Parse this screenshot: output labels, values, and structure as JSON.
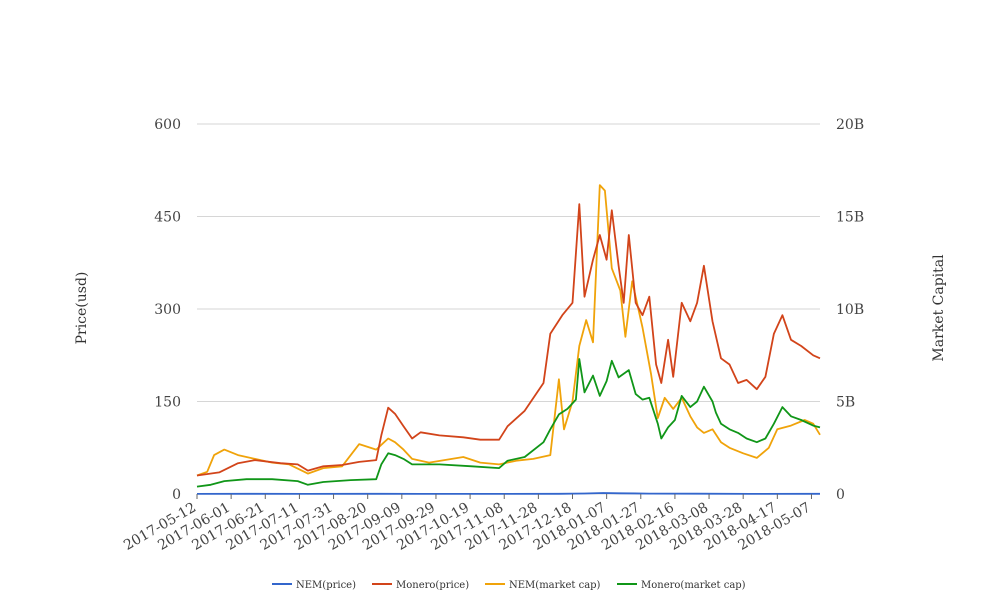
{
  "chart_data": {
    "type": "line",
    "title": "",
    "ylabel_left": "Price(usd)",
    "ylabel_right": "Market Capital",
    "x_start": "2017-05-12",
    "x_end": "2018-05-12",
    "x_ticks": [
      "2017-05-12",
      "2017-06-01",
      "2017-06-21",
      "2017-07-11",
      "2017-07-31",
      "2017-08-20",
      "2017-09-09",
      "2017-09-29",
      "2017-10-19",
      "2017-11-08",
      "2017-11-28",
      "2017-12-18",
      "2018-01-07",
      "2018-01-27",
      "2018-02-16",
      "2018-03-08",
      "2018-03-28",
      "2018-04-17",
      "2018-05-07"
    ],
    "y_left": {
      "range": [
        0,
        600
      ],
      "ticks": [
        "0",
        "150",
        "300",
        "450",
        "600"
      ]
    },
    "y_right": {
      "range": [
        0,
        20000000000
      ],
      "ticks": [
        "0",
        "5B",
        "10B",
        "15B",
        "20B"
      ]
    },
    "legend_position": "bottom",
    "grid": true,
    "series": [
      {
        "name": "NEM(price)",
        "axis": "left",
        "color": "#3366cc",
        "points": [
          [
            "2017-05-12",
            0.2
          ],
          [
            "2017-06-10",
            0.25
          ],
          [
            "2017-07-15",
            0.15
          ],
          [
            "2017-08-20",
            0.28
          ],
          [
            "2017-09-20",
            0.2
          ],
          [
            "2017-11-01",
            0.18
          ],
          [
            "2017-12-10",
            0.25
          ],
          [
            "2017-12-25",
            0.8
          ],
          [
            "2018-01-05",
            1.6
          ],
          [
            "2018-01-15",
            1.1
          ],
          [
            "2018-02-01",
            0.6
          ],
          [
            "2018-03-01",
            0.45
          ],
          [
            "2018-04-01",
            0.22
          ],
          [
            "2018-05-12",
            0.35
          ]
        ]
      },
      {
        "name": "Monero(price)",
        "axis": "left",
        "color": "#d2441a",
        "points": [
          [
            "2017-05-12",
            30
          ],
          [
            "2017-05-25",
            35
          ],
          [
            "2017-06-05",
            50
          ],
          [
            "2017-06-15",
            55
          ],
          [
            "2017-06-30",
            50
          ],
          [
            "2017-07-10",
            48
          ],
          [
            "2017-07-16",
            38
          ],
          [
            "2017-07-25",
            45
          ],
          [
            "2017-08-05",
            47
          ],
          [
            "2017-08-15",
            52
          ],
          [
            "2017-08-25",
            55
          ],
          [
            "2017-08-28",
            95
          ],
          [
            "2017-09-01",
            140
          ],
          [
            "2017-09-05",
            130
          ],
          [
            "2017-09-10",
            110
          ],
          [
            "2017-09-15",
            90
          ],
          [
            "2017-09-20",
            100
          ],
          [
            "2017-10-01",
            95
          ],
          [
            "2017-10-15",
            92
          ],
          [
            "2017-10-25",
            88
          ],
          [
            "2017-11-05",
            88
          ],
          [
            "2017-11-10",
            110
          ],
          [
            "2017-11-20",
            135
          ],
          [
            "2017-12-01",
            180
          ],
          [
            "2017-12-05",
            260
          ],
          [
            "2017-12-12",
            290
          ],
          [
            "2017-12-18",
            310
          ],
          [
            "2017-12-22",
            470
          ],
          [
            "2017-12-25",
            320
          ],
          [
            "2017-12-30",
            380
          ],
          [
            "2018-01-03",
            420
          ],
          [
            "2018-01-07",
            380
          ],
          [
            "2018-01-10",
            460
          ],
          [
            "2018-01-14",
            370
          ],
          [
            "2018-01-17",
            310
          ],
          [
            "2018-01-20",
            420
          ],
          [
            "2018-01-24",
            310
          ],
          [
            "2018-01-28",
            290
          ],
          [
            "2018-02-01",
            320
          ],
          [
            "2018-02-05",
            210
          ],
          [
            "2018-02-08",
            180
          ],
          [
            "2018-02-12",
            250
          ],
          [
            "2018-02-15",
            190
          ],
          [
            "2018-02-20",
            310
          ],
          [
            "2018-02-25",
            280
          ],
          [
            "2018-03-01",
            310
          ],
          [
            "2018-03-05",
            370
          ],
          [
            "2018-03-10",
            280
          ],
          [
            "2018-03-15",
            220
          ],
          [
            "2018-03-20",
            210
          ],
          [
            "2018-03-25",
            180
          ],
          [
            "2018-03-30",
            185
          ],
          [
            "2018-04-05",
            170
          ],
          [
            "2018-04-10",
            190
          ],
          [
            "2018-04-15",
            260
          ],
          [
            "2018-04-20",
            290
          ],
          [
            "2018-04-25",
            250
          ],
          [
            "2018-05-01",
            240
          ],
          [
            "2018-05-08",
            225
          ],
          [
            "2018-05-12",
            220
          ]
        ]
      },
      {
        "name": "NEM(market cap)",
        "axis": "right",
        "color": "#f0a30a",
        "points": [
          [
            "2017-05-12",
            1000000000
          ],
          [
            "2017-05-18",
            1200000000
          ],
          [
            "2017-05-22",
            2100000000
          ],
          [
            "2017-05-28",
            2400000000
          ],
          [
            "2017-06-05",
            2100000000
          ],
          [
            "2017-06-15",
            1900000000
          ],
          [
            "2017-06-25",
            1700000000
          ],
          [
            "2017-07-05",
            1600000000
          ],
          [
            "2017-07-16",
            1100000000
          ],
          [
            "2017-07-25",
            1400000000
          ],
          [
            "2017-08-05",
            1500000000
          ],
          [
            "2017-08-15",
            2700000000
          ],
          [
            "2017-08-25",
            2400000000
          ],
          [
            "2017-09-01",
            3000000000
          ],
          [
            "2017-09-05",
            2800000000
          ],
          [
            "2017-09-10",
            2400000000
          ],
          [
            "2017-09-15",
            1900000000
          ],
          [
            "2017-09-25",
            1700000000
          ],
          [
            "2017-10-15",
            2000000000
          ],
          [
            "2017-10-25",
            1700000000
          ],
          [
            "2017-11-05",
            1600000000
          ],
          [
            "2017-11-15",
            1800000000
          ],
          [
            "2017-11-25",
            1900000000
          ],
          [
            "2017-12-05",
            2100000000
          ],
          [
            "2017-12-10",
            6200000000
          ],
          [
            "2017-12-13",
            3500000000
          ],
          [
            "2017-12-18",
            5000000000
          ],
          [
            "2017-12-22",
            8000000000
          ],
          [
            "2017-12-26",
            9400000000
          ],
          [
            "2017-12-30",
            8200000000
          ],
          [
            "2018-01-03",
            16700000000
          ],
          [
            "2018-01-06",
            16400000000
          ],
          [
            "2018-01-10",
            12200000000
          ],
          [
            "2018-01-15",
            11000000000
          ],
          [
            "2018-01-18",
            8500000000
          ],
          [
            "2018-01-22",
            11500000000
          ],
          [
            "2018-01-28",
            9000000000
          ],
          [
            "2018-02-02",
            6500000000
          ],
          [
            "2018-02-06",
            4100000000
          ],
          [
            "2018-02-10",
            5200000000
          ],
          [
            "2018-02-15",
            4600000000
          ],
          [
            "2018-02-20",
            5200000000
          ],
          [
            "2018-02-25",
            4200000000
          ],
          [
            "2018-03-01",
            3600000000
          ],
          [
            "2018-03-05",
            3300000000
          ],
          [
            "2018-03-10",
            3500000000
          ],
          [
            "2018-03-15",
            2800000000
          ],
          [
            "2018-03-20",
            2500000000
          ],
          [
            "2018-03-28",
            2200000000
          ],
          [
            "2018-04-05",
            1950000000
          ],
          [
            "2018-04-12",
            2500000000
          ],
          [
            "2018-04-17",
            3500000000
          ],
          [
            "2018-04-25",
            3700000000
          ],
          [
            "2018-05-03",
            4000000000
          ],
          [
            "2018-05-08",
            3800000000
          ],
          [
            "2018-05-12",
            3200000000
          ]
        ]
      },
      {
        "name": "Monero(market cap)",
        "axis": "right",
        "color": "#109618",
        "points": [
          [
            "2017-05-12",
            400000000
          ],
          [
            "2017-05-20",
            500000000
          ],
          [
            "2017-05-28",
            700000000
          ],
          [
            "2017-06-10",
            800000000
          ],
          [
            "2017-06-25",
            800000000
          ],
          [
            "2017-07-10",
            700000000
          ],
          [
            "2017-07-16",
            500000000
          ],
          [
            "2017-07-25",
            650000000
          ],
          [
            "2017-08-10",
            750000000
          ],
          [
            "2017-08-25",
            800000000
          ],
          [
            "2017-08-28",
            1600000000
          ],
          [
            "2017-09-01",
            2200000000
          ],
          [
            "2017-09-05",
            2100000000
          ],
          [
            "2017-09-10",
            1900000000
          ],
          [
            "2017-09-15",
            1600000000
          ],
          [
            "2017-10-01",
            1600000000
          ],
          [
            "2017-10-20",
            1500000000
          ],
          [
            "2017-11-05",
            1400000000
          ],
          [
            "2017-11-10",
            1800000000
          ],
          [
            "2017-11-20",
            2000000000
          ],
          [
            "2017-12-01",
            2800000000
          ],
          [
            "2017-12-05",
            3500000000
          ],
          [
            "2017-12-10",
            4300000000
          ],
          [
            "2017-12-15",
            4600000000
          ],
          [
            "2017-12-20",
            5100000000
          ],
          [
            "2017-12-22",
            7300000000
          ],
          [
            "2017-12-25",
            5500000000
          ],
          [
            "2017-12-30",
            6400000000
          ],
          [
            "2018-01-03",
            5300000000
          ],
          [
            "2018-01-07",
            6100000000
          ],
          [
            "2018-01-10",
            7200000000
          ],
          [
            "2018-01-14",
            6300000000
          ],
          [
            "2018-01-20",
            6700000000
          ],
          [
            "2018-01-24",
            5400000000
          ],
          [
            "2018-01-28",
            5100000000
          ],
          [
            "2018-02-01",
            5200000000
          ],
          [
            "2018-02-06",
            3800000000
          ],
          [
            "2018-02-08",
            3000000000
          ],
          [
            "2018-02-12",
            3600000000
          ],
          [
            "2018-02-16",
            4000000000
          ],
          [
            "2018-02-20",
            5300000000
          ],
          [
            "2018-02-25",
            4700000000
          ],
          [
            "2018-03-01",
            5000000000
          ],
          [
            "2018-03-05",
            5800000000
          ],
          [
            "2018-03-10",
            5000000000
          ],
          [
            "2018-03-12",
            4400000000
          ],
          [
            "2018-03-15",
            3800000000
          ],
          [
            "2018-03-20",
            3500000000
          ],
          [
            "2018-03-25",
            3300000000
          ],
          [
            "2018-03-30",
            3000000000
          ],
          [
            "2018-04-05",
            2800000000
          ],
          [
            "2018-04-10",
            3000000000
          ],
          [
            "2018-04-15",
            3800000000
          ],
          [
            "2018-04-20",
            4700000000
          ],
          [
            "2018-04-25",
            4200000000
          ],
          [
            "2018-05-01",
            4000000000
          ],
          [
            "2018-05-08",
            3700000000
          ],
          [
            "2018-05-12",
            3600000000
          ]
        ]
      }
    ]
  }
}
